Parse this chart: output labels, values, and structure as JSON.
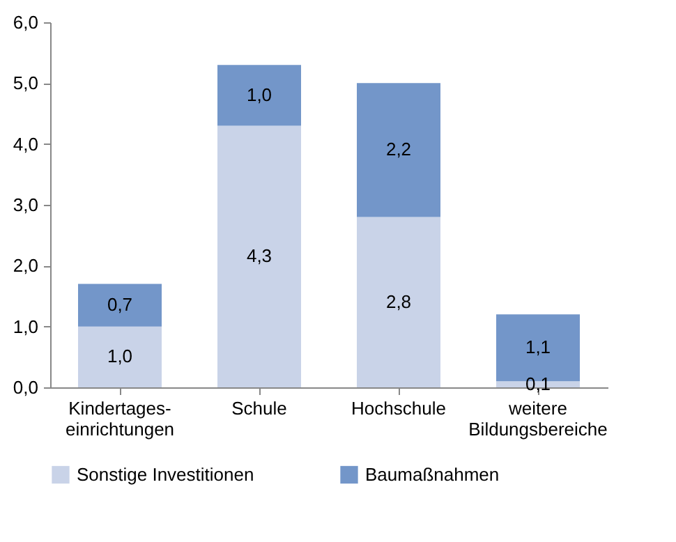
{
  "chart_data": {
    "type": "bar",
    "stacked": true,
    "categories": [
      "Kindertages- einrichtungen",
      "Schule",
      "Hochschule",
      "weitere Bildungsbereiche"
    ],
    "series": [
      {
        "name": "Sonstige Investitionen",
        "color": "#c9d3e8",
        "values": [
          1.0,
          4.3,
          2.8,
          0.1
        ],
        "value_labels": [
          "1,0",
          "4,3",
          "2,8",
          "0,1"
        ]
      },
      {
        "name": "Baumaßnahmen",
        "color": "#7396c9",
        "values": [
          0.7,
          1.0,
          2.2,
          1.1
        ],
        "value_labels": [
          "0,7",
          "1,0",
          "2,2",
          "1,1"
        ]
      }
    ],
    "ylim": [
      0,
      6
    ],
    "yticks": [
      {
        "value": 0,
        "label": "0,0"
      },
      {
        "value": 1,
        "label": "1,0"
      },
      {
        "value": 2,
        "label": "2,0"
      },
      {
        "value": 3,
        "label": "3,0"
      },
      {
        "value": 4,
        "label": "4,0"
      },
      {
        "value": 5,
        "label": "5,0"
      },
      {
        "value": 6,
        "label": "6,0"
      }
    ],
    "grid": false,
    "legend": "bottom"
  }
}
